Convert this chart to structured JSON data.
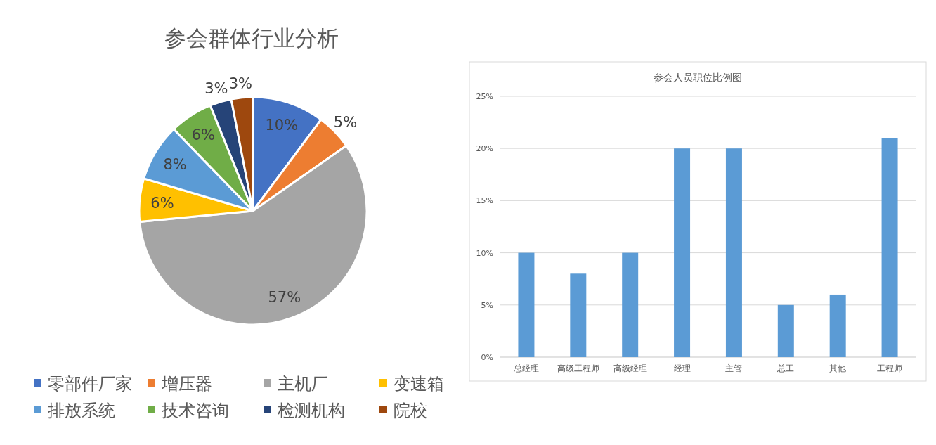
{
  "chart_data": [
    {
      "type": "pie",
      "title": "参会群体行业分析",
      "categories": [
        "零部件厂家",
        "增压器",
        "主机厂",
        "变速箱",
        "排放系统",
        "技术咨询",
        "检测机构",
        "院校"
      ],
      "values": [
        10,
        5,
        57,
        6,
        8,
        6,
        3,
        3
      ],
      "value_labels": [
        "10%",
        "5%",
        "57%",
        "6%",
        "8%",
        "6%",
        "3%",
        "3%"
      ],
      "colors": [
        "#4472c4",
        "#ed7d31",
        "#a5a5a5",
        "#ffc000",
        "#5b9bd5",
        "#70ad47",
        "#264478",
        "#9e480e"
      ],
      "legend": "bottom"
    },
    {
      "type": "bar",
      "title": "参会人员职位比例图",
      "categories": [
        "总经理",
        "高级工程师",
        "高级经理",
        "经理",
        "主管",
        "总工",
        "其他",
        "工程师"
      ],
      "values": [
        10,
        8,
        10,
        20,
        20,
        5,
        6,
        21
      ],
      "color": "#5b9bd5",
      "ylim": [
        0,
        25
      ],
      "yticks": [
        {
          "value": 0,
          "label": "0%"
        },
        {
          "value": 5,
          "label": "5%"
        },
        {
          "value": 10,
          "label": "10%"
        },
        {
          "value": 15,
          "label": "15%"
        },
        {
          "value": 20,
          "label": "20%"
        },
        {
          "value": 25,
          "label": "25%"
        }
      ],
      "grid": "y"
    }
  ]
}
